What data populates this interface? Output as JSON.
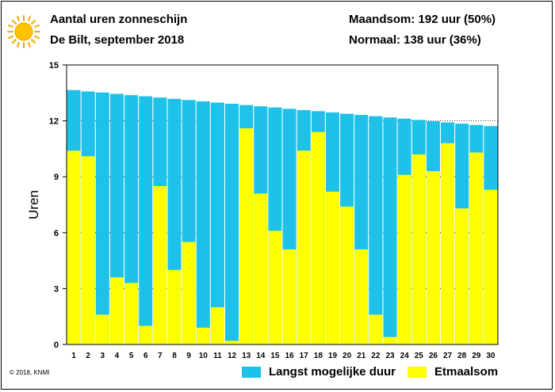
{
  "header": {
    "title": "Aantal uren zonneschijn",
    "subtitle": "De Bilt, september 2018",
    "month_sum": "Maandsom: 192 uur (50%)",
    "normal": "Normaal: 138 uur (36%)"
  },
  "icons": {
    "sun": "sun-icon"
  },
  "copyright": "© 2018, KNMI",
  "colors": {
    "possible": "#1ec2e8",
    "actual": "#ffff00",
    "grid": "#000000"
  },
  "legend": {
    "possible_label": "Langst mogelijke duur",
    "actual_label": "Etmaalsom"
  },
  "chart_data": {
    "type": "bar",
    "ylabel": "Uren",
    "xlabel": "",
    "ylim": [
      0,
      15
    ],
    "yticks": [
      0,
      3,
      6,
      9,
      12,
      15
    ],
    "grid": true,
    "categories": [
      "1",
      "2",
      "3",
      "4",
      "5",
      "6",
      "7",
      "8",
      "9",
      "10",
      "11",
      "12",
      "13",
      "14",
      "15",
      "16",
      "17",
      "18",
      "19",
      "20",
      "21",
      "22",
      "23",
      "24",
      "25",
      "26",
      "27",
      "28",
      "29",
      "30"
    ],
    "series": [
      {
        "name": "Langst mogelijke duur",
        "values": [
          13.65,
          13.58,
          13.52,
          13.45,
          13.38,
          13.32,
          13.25,
          13.18,
          13.12,
          13.05,
          12.98,
          12.92,
          12.85,
          12.78,
          12.72,
          12.65,
          12.58,
          12.52,
          12.45,
          12.38,
          12.32,
          12.25,
          12.18,
          12.12,
          12.05,
          11.98,
          11.92,
          11.85,
          11.78,
          11.72
        ]
      },
      {
        "name": "Etmaalsom",
        "values": [
          10.4,
          10.1,
          1.6,
          3.6,
          3.3,
          1.0,
          8.5,
          4.0,
          5.5,
          0.9,
          2.0,
          0.2,
          11.6,
          8.1,
          6.1,
          5.1,
          10.4,
          11.4,
          8.2,
          7.4,
          5.1,
          1.6,
          0.4,
          9.1,
          10.2,
          9.3,
          10.8,
          7.3,
          10.3,
          8.3
        ]
      }
    ]
  }
}
